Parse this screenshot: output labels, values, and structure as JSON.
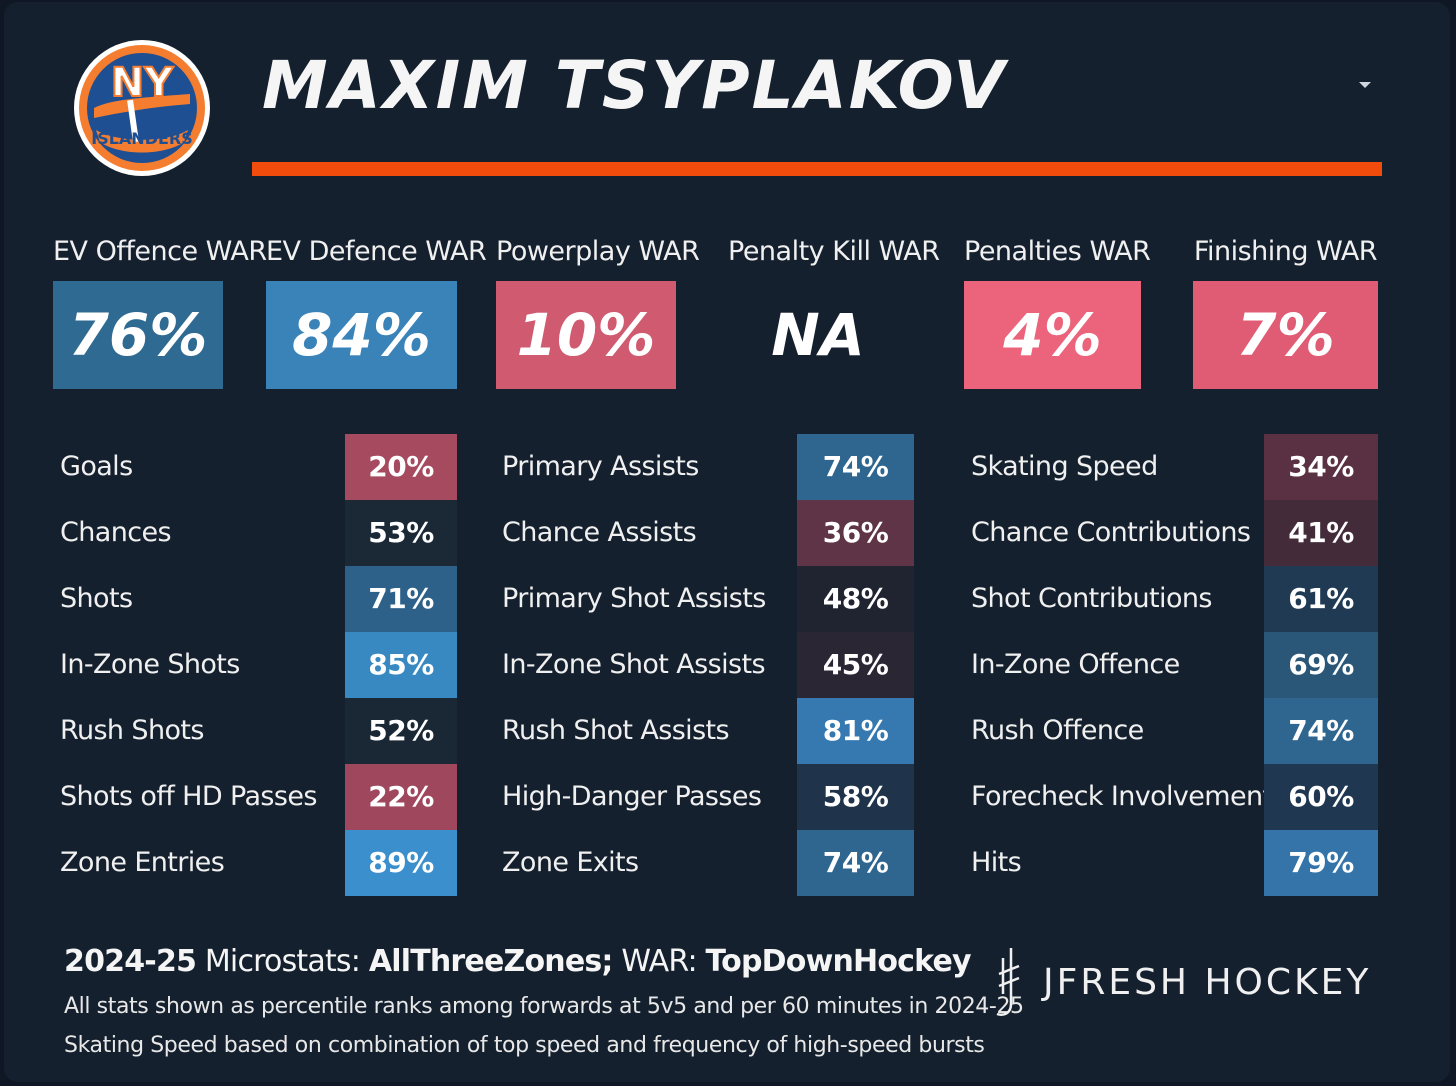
{
  "header": {
    "player_name": "MAXIM TSYPLAKOV",
    "team_logo_top": "NY",
    "team_logo_bottom": "ISLANDERS"
  },
  "war": [
    {
      "label": "EV Offence WAR",
      "value": "76%",
      "color": "#2f6a92"
    },
    {
      "label": "EV Defence WAR",
      "value": "84%",
      "color": "#3a83b9"
    },
    {
      "label": "Powerplay WAR",
      "value": "10%",
      "color": "#d05a70"
    },
    {
      "label": "Penalty Kill WAR",
      "value": "NA",
      "color": "#15202e"
    },
    {
      "label": "Penalties WAR",
      "value": "4%",
      "color": "#ec637c"
    },
    {
      "label": "Finishing WAR",
      "value": "7%",
      "color": "#e05c74"
    }
  ],
  "columns": [
    {
      "rows": [
        {
          "label": "Goals",
          "value": "20%",
          "color": "#a64a60"
        },
        {
          "label": "Chances",
          "value": "53%",
          "color": "#1b2836"
        },
        {
          "label": "Shots",
          "value": "71%",
          "color": "#2d6189"
        },
        {
          "label": "In-Zone Shots",
          "value": "85%",
          "color": "#3889c2"
        },
        {
          "label": "Rush Shots",
          "value": "52%",
          "color": "#1a2735"
        },
        {
          "label": "Shots off HD Passes",
          "value": "22%",
          "color": "#9e475d"
        },
        {
          "label": "Zone Entries",
          "value": "89%",
          "color": "#3b8fcc"
        }
      ]
    },
    {
      "rows": [
        {
          "label": "Primary Assists",
          "value": "74%",
          "color": "#2f6690"
        },
        {
          "label": "Chance Assists",
          "value": "36%",
          "color": "#5e3446"
        },
        {
          "label": "Primary Shot Assists",
          "value": "48%",
          "color": "#202431"
        },
        {
          "label": "In-Zone Shot Assists",
          "value": "45%",
          "color": "#2a2634"
        },
        {
          "label": "Rush Shot Assists",
          "value": "81%",
          "color": "#3579b0"
        },
        {
          "label": "High-Danger Passes",
          "value": "58%",
          "color": "#1f344a"
        },
        {
          "label": "Zone Exits",
          "value": "74%",
          "color": "#2f6690"
        }
      ]
    },
    {
      "rows": [
        {
          "label": "Skating Speed",
          "value": "34%",
          "color": "#5a3142"
        },
        {
          "label": "Chance Contributions",
          "value": "41%",
          "color": "#432b3a"
        },
        {
          "label": "Shot Contributions",
          "value": "61%",
          "color": "#203a53"
        },
        {
          "label": "In-Zone Offence",
          "value": "69%",
          "color": "#2a5778"
        },
        {
          "label": "Rush Offence",
          "value": "74%",
          "color": "#2f6690"
        },
        {
          "label": "Forecheck Involvement",
          "value": "60%",
          "color": "#1f3750"
        },
        {
          "label": "Hits",
          "value": "79%",
          "color": "#3474a8"
        }
      ]
    }
  ],
  "footer": {
    "season": "2024-25",
    "micro_prefix": " Microstats: ",
    "micro_source": "AllThreeZones;",
    "war_prefix": " WAR: ",
    "war_source": "TopDownHockey",
    "note1": "All stats shown as percentile ranks among forwards at 5v5 and per 60 minutes in 2024-25",
    "note2": "Skating Speed based on combination of top speed and frequency of high-speed bursts",
    "brand": "JFRESH HOCKEY"
  },
  "icons": {
    "logo": "islanders-logo-icon",
    "brand": "jfresh-logo-icon",
    "menu": "caret-down-icon"
  }
}
